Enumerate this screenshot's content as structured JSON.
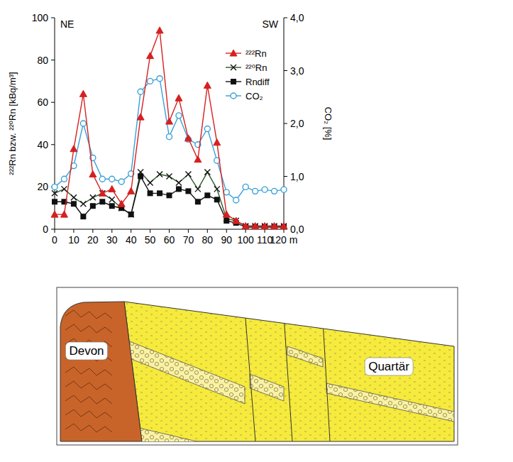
{
  "chart_data": {
    "type": "line",
    "x": [
      0,
      5,
      10,
      15,
      20,
      25,
      30,
      35,
      40,
      45,
      50,
      55,
      60,
      65,
      70,
      75,
      80,
      85,
      90,
      95,
      100,
      105,
      110,
      115,
      120
    ],
    "series": [
      {
        "name": "²²²Rn",
        "color": "#d62020",
        "marker": "triangle",
        "values": [
          7,
          7,
          38,
          64,
          26,
          17,
          19,
          12,
          18,
          53,
          82,
          94,
          51,
          62,
          43,
          33,
          68,
          41,
          7,
          4,
          1.5,
          1.5,
          1.5,
          1.5,
          1.5
        ]
      },
      {
        "name": "²²⁰Rn",
        "color": "#2d5a27",
        "marker": "x",
        "values": [
          17,
          19,
          15,
          12,
          15,
          17,
          14,
          10,
          7,
          27,
          22,
          26,
          25,
          22,
          26,
          19,
          27,
          19,
          5,
          4,
          1.5,
          1.5,
          1.5,
          1.5,
          1.5
        ]
      },
      {
        "name": "Rndiff",
        "color": "#111111",
        "marker": "square",
        "values": [
          13,
          13,
          12,
          6,
          11,
          13,
          11,
          10,
          7,
          25,
          17,
          17,
          16,
          19,
          18,
          13,
          16,
          14,
          4,
          3,
          1,
          1,
          1,
          1,
          1
        ]
      },
      {
        "name": "CO₂",
        "color": "#3aa0d8",
        "marker": "circle",
        "axis": "y2",
        "values": [
          0.8,
          0.95,
          1.2,
          2.0,
          1.35,
          0.95,
          0.95,
          0.9,
          1.05,
          2.6,
          2.8,
          2.85,
          1.75,
          2.15,
          1.7,
          1.6,
          1.9,
          1.3,
          0.7,
          0.55,
          0.8,
          0.72,
          0.75,
          0.72,
          0.75
        ]
      }
    ],
    "xlim": [
      0,
      120
    ],
    "xticks": [
      0,
      10,
      20,
      30,
      40,
      50,
      60,
      70,
      80,
      90,
      100,
      110,
      {
        "value": 120,
        "label": "120 m"
      }
    ],
    "ylim": [
      0,
      100
    ],
    "yticks": [
      0,
      20,
      40,
      60,
      80,
      100
    ],
    "y2lim": [
      0,
      4
    ],
    "y2ticks": [
      {
        "value": 0,
        "label": "0,0"
      },
      {
        "value": 1,
        "label": "1,0"
      },
      {
        "value": 2,
        "label": "2,0"
      },
      {
        "value": 3,
        "label": "3,0"
      },
      {
        "value": 4,
        "label": "4,0"
      }
    ],
    "y_label": "²²²Rn bzw. ²²⁰Rn [kBq/m³]",
    "y2_label": "CO₂ [%]",
    "annotations": [
      "NE",
      "SW"
    ],
    "legend": "upper right",
    "grid": false
  },
  "cross_section": {
    "units": [
      {
        "label": "Devon"
      },
      {
        "label": "Quartär"
      }
    ]
  }
}
